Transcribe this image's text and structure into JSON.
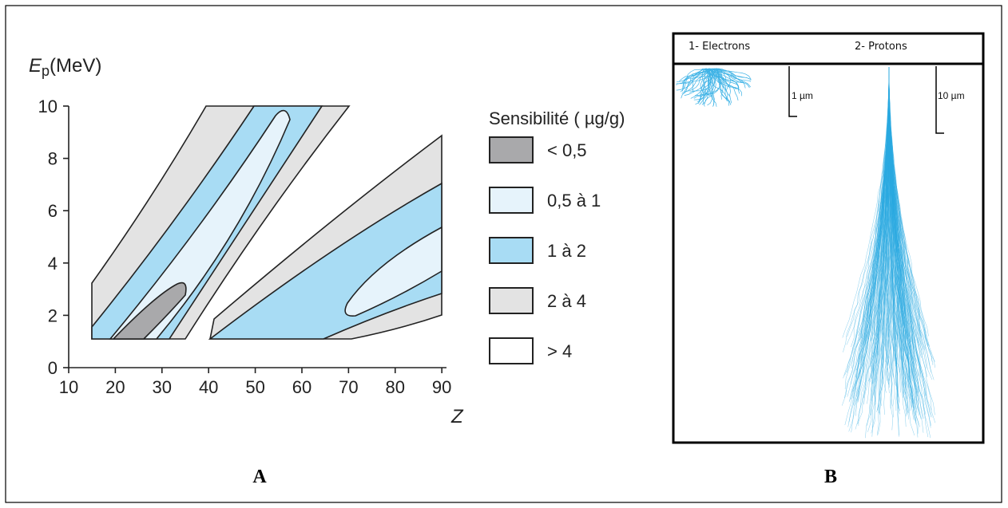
{
  "panel_a": {
    "y_label": {
      "symbol": "E",
      "subscript": "p",
      "unit": "(MeV)"
    },
    "x_label": "Z",
    "xlim": [
      10,
      91
    ],
    "ylim": [
      0,
      10
    ],
    "xticks": [
      10,
      20,
      30,
      40,
      50,
      60,
      70,
      80,
      90
    ],
    "yticks": [
      0,
      2,
      4,
      6,
      8,
      10
    ],
    "legend": {
      "title": "Sensibilité ( µg/g)",
      "items": [
        {
          "label": "< 0,5",
          "color": "#a9a9ab"
        },
        {
          "label": "0,5 à 1",
          "color": "#e6f3fb"
        },
        {
          "label": "1 à 2",
          "color": "#a8dcf4"
        },
        {
          "label": "2 à 4",
          "color": "#e3e3e3"
        },
        {
          "label": "> 4",
          "color": "#ffffff"
        }
      ]
    },
    "label": "A"
  },
  "panel_b": {
    "electrons": "1- Electrons",
    "protons": "2- Protons",
    "electron_scale": "1 µm",
    "proton_scale": "10 µm",
    "label": "B"
  }
}
